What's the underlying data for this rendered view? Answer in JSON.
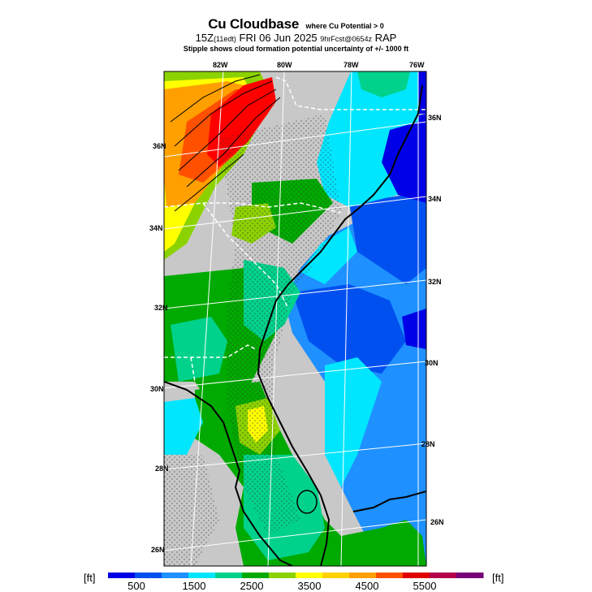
{
  "title": {
    "main": "Cu Cloudbase",
    "condition": "where Cu Potential > 0",
    "line2_time": "15Z",
    "line2_local": "(11edt)",
    "line2_date": "FRI 06 Jun 2025",
    "line2_fcst": "9hrFcst@0654z",
    "line2_model": "RAP",
    "line3": "Stipple shows cloud formation potential uncertainty of +/- 1000 ft"
  },
  "map": {
    "region": "Southeastern United States (Carolinas, Georgia, Florida)",
    "lon_labels_top": [
      "82W",
      "80W",
      "78W",
      "76W"
    ],
    "lat_labels_left": [
      "36N",
      "34N",
      "32N",
      "30N",
      "28N",
      "26N"
    ],
    "lat_labels_right": [
      "36N",
      "34N",
      "32N",
      "30N",
      "28N",
      "26N"
    ],
    "colors": {
      "land_no_cu": "#c8c8c8",
      "deep_blue": "#0000e6",
      "blue": "#0050f0",
      "medium_blue": "#1e90ff",
      "cyan": "#00e6ff",
      "teal_green": "#00d28c",
      "green": "#00aa00",
      "yellow_green": "#8cd200",
      "yellow": "#ffff00",
      "orange": "#ffa000",
      "red_orange": "#ff5000",
      "red": "#ff0000"
    }
  },
  "colorbar": {
    "unit_label": "[ft]",
    "tick_labels": [
      "500",
      "1500",
      "2500",
      "3500",
      "4500",
      "5500"
    ],
    "colors": [
      "#0000e6",
      "#0050f0",
      "#1e90ff",
      "#00e6ff",
      "#00d28c",
      "#00aa00",
      "#8cd200",
      "#ffff00",
      "#ffd200",
      "#ffa000",
      "#ff5000",
      "#e10000",
      "#b4004b",
      "#780078"
    ]
  }
}
